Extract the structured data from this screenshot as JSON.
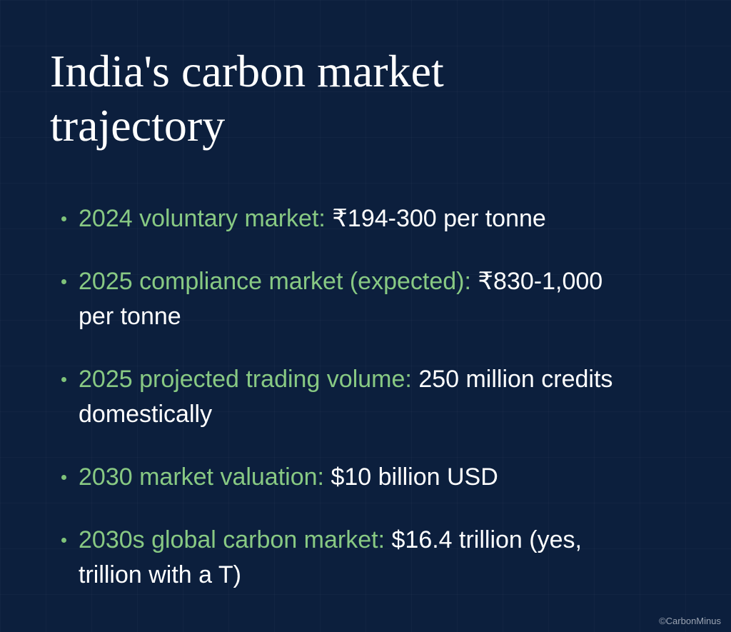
{
  "title": "India's carbon market trajectory",
  "bullets": [
    {
      "label": "2024 voluntary market:",
      "text": "₹194-300 per tonne"
    },
    {
      "label": "2025 compliance market (expected):",
      "text": "₹830-1,000 per tonne"
    },
    {
      "label": "2025 projected trading volume:",
      "text": "250 million credits domestically"
    },
    {
      "label": "2030 market valuation:",
      "text": "$10 billion USD"
    },
    {
      "label": "2030s global carbon market:",
      "text": "$16.4 trillion (yes, trillion with a T)"
    }
  ],
  "footer": "©CarbonMinus"
}
